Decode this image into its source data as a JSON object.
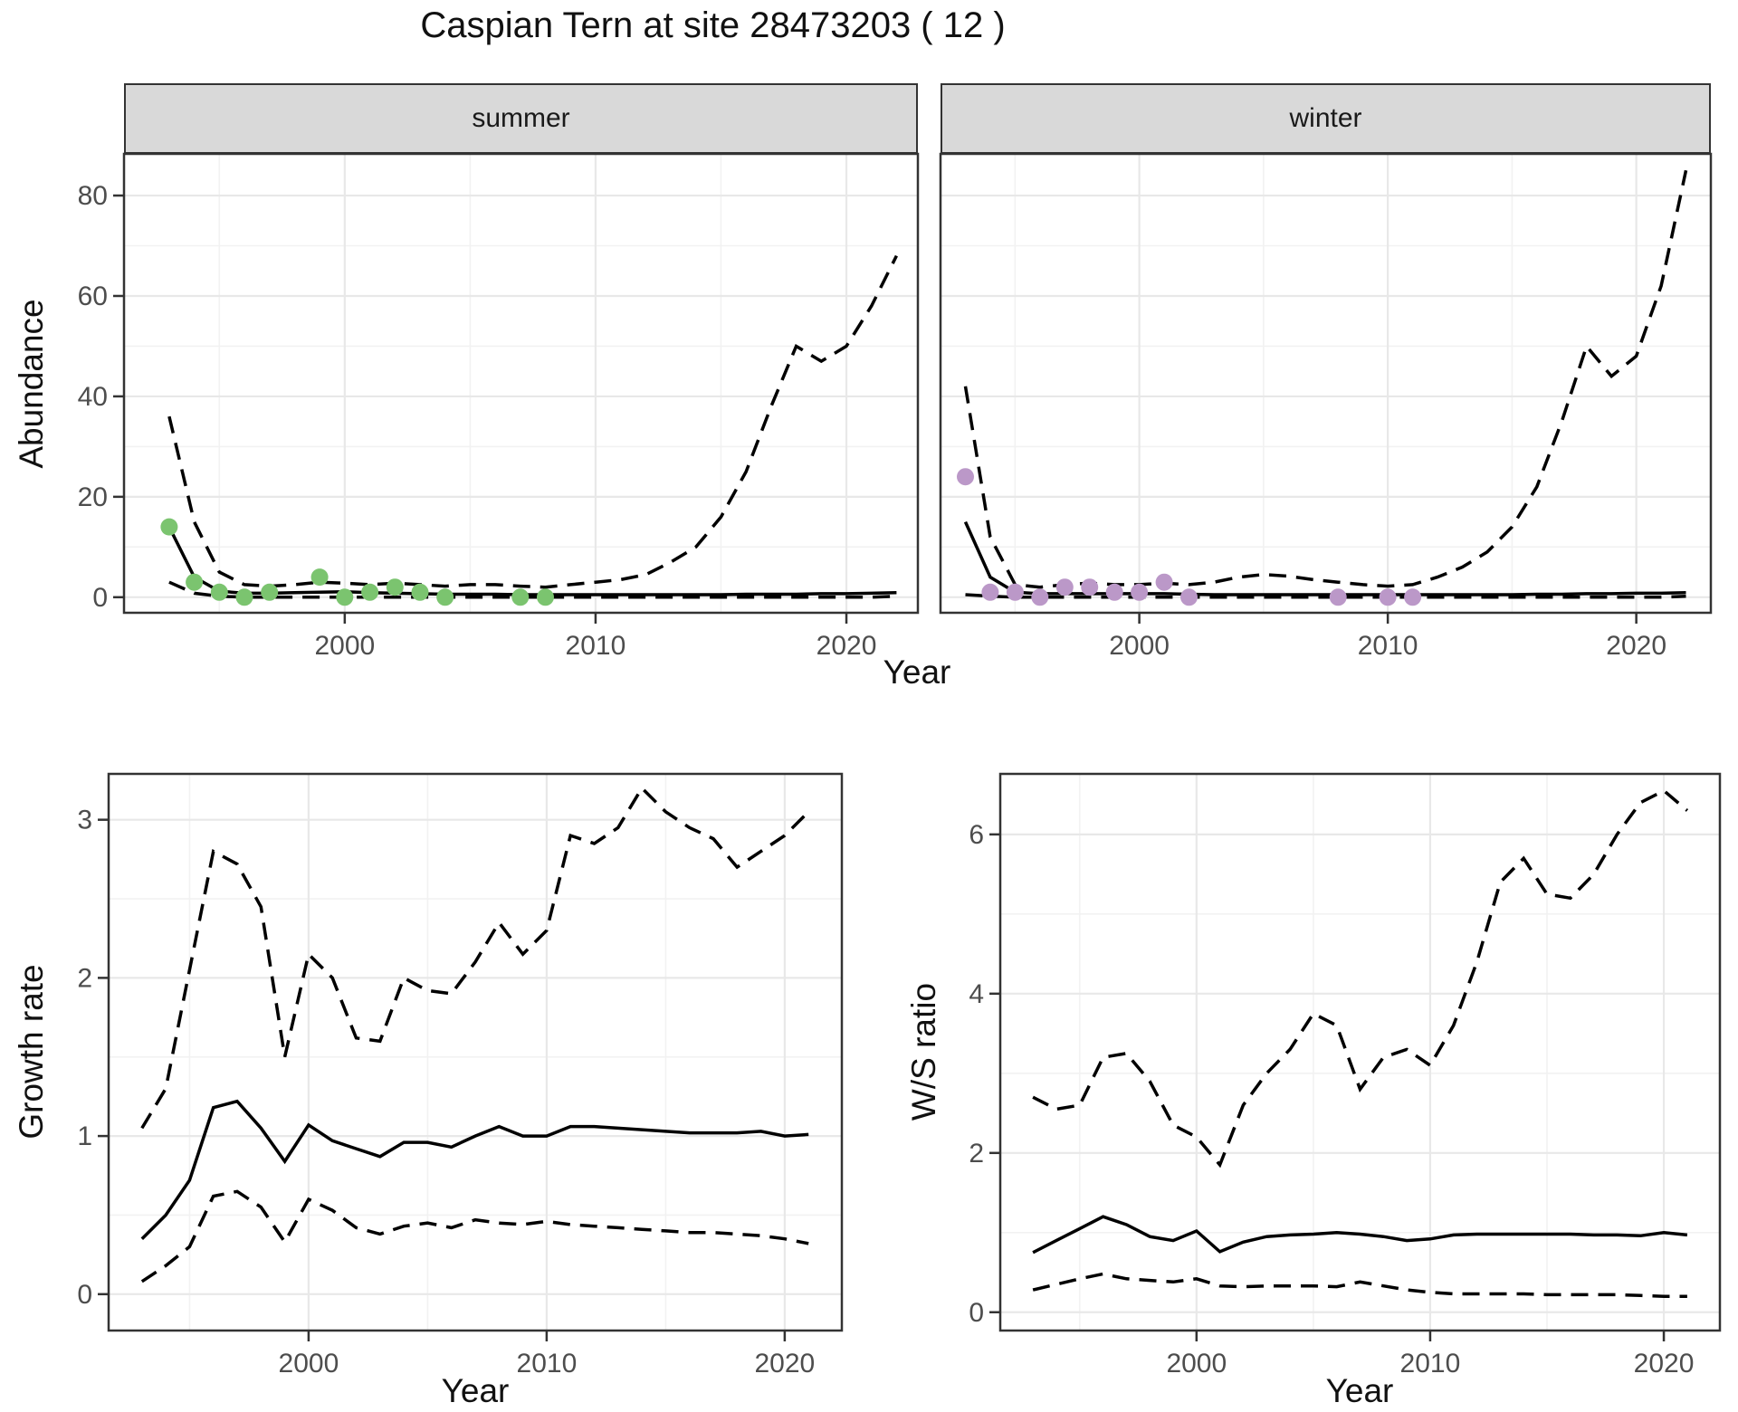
{
  "title": "Caspian Tern at site 28473203 ( 12 )",
  "colors": {
    "summer_point": "#7BC46F",
    "winter_point": "#BB98C8",
    "line": "#000000",
    "grid_major": "#E8E8E8",
    "grid_minor": "#F2F2F2",
    "panel_border": "#333333",
    "strip_bg": "#D9D9D9",
    "axis_text": "#4D4D4D"
  },
  "chart_data": [
    {
      "id": "summer",
      "type": "line",
      "facet_label": "summer",
      "xlabel": "Year",
      "ylabel": "Abundance",
      "x_ticks": [
        2000,
        2010,
        2020
      ],
      "y_ticks": [
        0,
        20,
        40,
        60,
        80
      ],
      "xlim": [
        1991.2,
        2022.85
      ],
      "ylim": [
        -3.1,
        88.3
      ],
      "show_y_ticks": true,
      "grid": true,
      "legend": "none",
      "x": [
        1993,
        1994,
        1995,
        1996,
        1997,
        1998,
        1999,
        2000,
        2001,
        2002,
        2003,
        2004,
        2005,
        2006,
        2007,
        2008,
        2009,
        2010,
        2011,
        2012,
        2013,
        2014,
        2015,
        2016,
        2017,
        2018,
        2019,
        2020,
        2021,
        2022
      ],
      "series": [
        {
          "name": "median",
          "style": "solid",
          "values": [
            14,
            4,
            1.2,
            0.8,
            0.8,
            0.9,
            1.0,
            1.1,
            0.9,
            0.8,
            0.7,
            0.6,
            0.6,
            0.6,
            0.5,
            0.5,
            0.5,
            0.5,
            0.5,
            0.5,
            0.5,
            0.5,
            0.5,
            0.6,
            0.6,
            0.6,
            0.7,
            0.7,
            0.8,
            0.9
          ]
        },
        {
          "name": "upper_ci",
          "style": "dashed",
          "values": [
            36,
            15,
            5,
            2.5,
            2.2,
            2.5,
            3,
            2.8,
            2.5,
            2.8,
            2.5,
            2.2,
            2.5,
            2.5,
            2.2,
            2,
            2.5,
            3,
            3.5,
            4.5,
            7,
            10,
            16,
            25,
            38,
            50,
            47,
            50,
            58,
            68
          ]
        },
        {
          "name": "lower_ci",
          "style": "dashed",
          "values": [
            3,
            0.8,
            0.2,
            0,
            0,
            0,
            0,
            0,
            0,
            0,
            0,
            0,
            0,
            0,
            0,
            0,
            0,
            0,
            0,
            0,
            0,
            0,
            0,
            0,
            0,
            0,
            0,
            0,
            0,
            0.2
          ]
        }
      ],
      "points": {
        "name": "observed",
        "color": "#7BC46F",
        "data": [
          [
            1993,
            14
          ],
          [
            1994,
            3
          ],
          [
            1995,
            1
          ],
          [
            1996,
            0
          ],
          [
            1997,
            1
          ],
          [
            1999,
            4
          ],
          [
            2000,
            0
          ],
          [
            2001,
            1
          ],
          [
            2002,
            2
          ],
          [
            2003,
            1
          ],
          [
            2004,
            0
          ],
          [
            2007,
            0
          ],
          [
            2008,
            0
          ]
        ]
      }
    },
    {
      "id": "winter",
      "type": "line",
      "facet_label": "winter",
      "xlabel": "Year",
      "ylabel": "Abundance",
      "x_ticks": [
        2000,
        2010,
        2020
      ],
      "y_ticks": [
        0,
        20,
        40,
        60,
        80
      ],
      "xlim": [
        1992.0,
        2023.0
      ],
      "ylim": [
        -3.1,
        88.3
      ],
      "show_y_ticks": false,
      "grid": true,
      "legend": "none",
      "x": [
        1993,
        1994,
        1995,
        1996,
        1997,
        1998,
        1999,
        2000,
        2001,
        2002,
        2003,
        2004,
        2005,
        2006,
        2007,
        2008,
        2009,
        2010,
        2011,
        2012,
        2013,
        2014,
        2015,
        2016,
        2017,
        2018,
        2019,
        2020,
        2021,
        2022
      ],
      "series": [
        {
          "name": "median",
          "style": "solid",
          "values": [
            15,
            4,
            1,
            0.7,
            0.7,
            0.7,
            0.7,
            0.7,
            0.7,
            0.6,
            0.5,
            0.5,
            0.5,
            0.5,
            0.5,
            0.5,
            0.5,
            0.5,
            0.5,
            0.5,
            0.5,
            0.5,
            0.5,
            0.6,
            0.6,
            0.7,
            0.7,
            0.8,
            0.8,
            0.9
          ]
        },
        {
          "name": "upper_ci",
          "style": "dashed",
          "values": [
            42,
            12,
            2.5,
            2,
            2.5,
            2.8,
            2.5,
            2.5,
            2.8,
            2.5,
            3,
            4,
            4.5,
            4.2,
            3.5,
            3,
            2.5,
            2.2,
            2.5,
            4,
            6,
            9,
            14,
            22,
            35,
            50,
            44,
            48,
            62,
            85
          ]
        },
        {
          "name": "lower_ci",
          "style": "dashed",
          "values": [
            0.5,
            0.2,
            0,
            0,
            0,
            0,
            0,
            0,
            0,
            0,
            0,
            0,
            0,
            0,
            0,
            0,
            0,
            0,
            0,
            0,
            0,
            0,
            0,
            0,
            0,
            0,
            0,
            0,
            0,
            0.2
          ]
        }
      ],
      "points": {
        "name": "observed",
        "color": "#BB98C8",
        "data": [
          [
            1993,
            24
          ],
          [
            1994,
            1
          ],
          [
            1995,
            1
          ],
          [
            1996,
            0
          ],
          [
            1997,
            2
          ],
          [
            1998,
            2
          ],
          [
            1999,
            1
          ],
          [
            2000,
            1
          ],
          [
            2001,
            3
          ],
          [
            2002,
            0
          ],
          [
            2008,
            0
          ],
          [
            2010,
            0
          ],
          [
            2011,
            0
          ]
        ]
      }
    },
    {
      "id": "growth",
      "type": "line",
      "facet_label": "",
      "xlabel": "Year",
      "ylabel": "Growth rate",
      "x_ticks": [
        2000,
        2010,
        2020
      ],
      "y_ticks": [
        0,
        1,
        2,
        3
      ],
      "xlim": [
        1991.6,
        2022.4
      ],
      "ylim": [
        -0.23,
        3.29
      ],
      "show_y_ticks": true,
      "grid": true,
      "legend": "none",
      "x": [
        1993,
        1994,
        1995,
        1996,
        1997,
        1998,
        1999,
        2000,
        2001,
        2002,
        2003,
        2004,
        2005,
        2006,
        2007,
        2008,
        2009,
        2010,
        2011,
        2012,
        2013,
        2014,
        2015,
        2016,
        2017,
        2018,
        2019,
        2020,
        2021
      ],
      "series": [
        {
          "name": "median",
          "style": "solid",
          "values": [
            0.35,
            0.5,
            0.72,
            1.18,
            1.22,
            1.05,
            0.84,
            1.07,
            0.97,
            0.92,
            0.87,
            0.96,
            0.96,
            0.93,
            1.0,
            1.06,
            1.0,
            1.0,
            1.06,
            1.06,
            1.05,
            1.04,
            1.03,
            1.02,
            1.02,
            1.02,
            1.03,
            1.0,
            1.01
          ]
        },
        {
          "name": "upper_ci",
          "style": "dashed",
          "values": [
            1.05,
            1.3,
            2.05,
            2.8,
            2.72,
            2.45,
            1.5,
            2.15,
            2.0,
            1.62,
            1.6,
            2.0,
            1.92,
            1.9,
            2.1,
            2.35,
            2.15,
            2.3,
            2.9,
            2.85,
            2.95,
            3.2,
            3.05,
            2.95,
            2.88,
            2.7,
            2.8,
            2.9,
            3.05
          ]
        },
        {
          "name": "lower_ci",
          "style": "dashed",
          "values": [
            0.08,
            0.18,
            0.3,
            0.62,
            0.65,
            0.55,
            0.33,
            0.6,
            0.53,
            0.42,
            0.38,
            0.43,
            0.45,
            0.42,
            0.47,
            0.45,
            0.44,
            0.46,
            0.44,
            0.43,
            0.42,
            0.41,
            0.4,
            0.39,
            0.39,
            0.38,
            0.37,
            0.35,
            0.32
          ]
        }
      ],
      "points": null
    },
    {
      "id": "ws",
      "type": "line",
      "facet_label": "",
      "xlabel": "Year",
      "ylabel": "W/S ratio",
      "x_ticks": [
        2000,
        2010,
        2020
      ],
      "y_ticks": [
        0,
        2,
        4,
        6
      ],
      "xlim": [
        1991.6,
        2022.4
      ],
      "ylim": [
        -0.23,
        6.76
      ],
      "show_y_ticks": true,
      "grid": true,
      "legend": "none",
      "x": [
        1993,
        1994,
        1995,
        1996,
        1997,
        1998,
        1999,
        2000,
        2001,
        2002,
        2003,
        2004,
        2005,
        2006,
        2007,
        2008,
        2009,
        2010,
        2011,
        2012,
        2013,
        2014,
        2015,
        2016,
        2017,
        2018,
        2019,
        2020,
        2021
      ],
      "series": [
        {
          "name": "median",
          "style": "solid",
          "values": [
            0.75,
            0.9,
            1.05,
            1.2,
            1.1,
            0.95,
            0.9,
            1.02,
            0.76,
            0.88,
            0.95,
            0.97,
            0.98,
            1.0,
            0.98,
            0.95,
            0.9,
            0.92,
            0.97,
            0.98,
            0.98,
            0.98,
            0.98,
            0.98,
            0.97,
            0.97,
            0.96,
            1.0,
            0.97
          ]
        },
        {
          "name": "upper_ci",
          "style": "dashed",
          "values": [
            2.7,
            2.55,
            2.6,
            3.2,
            3.25,
            2.9,
            2.35,
            2.2,
            1.85,
            2.6,
            3.0,
            3.3,
            3.75,
            3.6,
            2.8,
            3.2,
            3.3,
            3.1,
            3.6,
            4.4,
            5.4,
            5.7,
            5.25,
            5.2,
            5.5,
            6.0,
            6.4,
            6.55,
            6.3
          ]
        },
        {
          "name": "lower_ci",
          "style": "dashed",
          "values": [
            0.28,
            0.35,
            0.42,
            0.48,
            0.42,
            0.4,
            0.38,
            0.42,
            0.33,
            0.32,
            0.33,
            0.33,
            0.33,
            0.32,
            0.38,
            0.33,
            0.28,
            0.25,
            0.23,
            0.23,
            0.23,
            0.23,
            0.22,
            0.22,
            0.22,
            0.22,
            0.21,
            0.2,
            0.2
          ]
        }
      ],
      "points": null
    }
  ]
}
